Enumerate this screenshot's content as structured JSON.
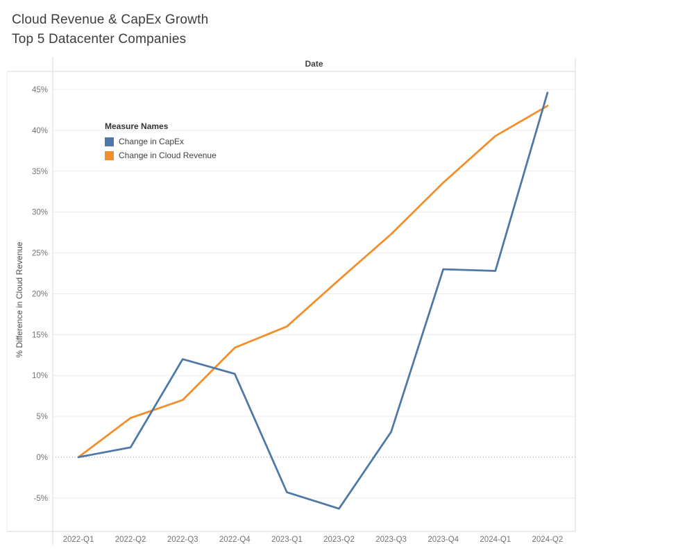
{
  "header": {
    "title": "Cloud Revenue & CapEx Growth",
    "subtitle": "Top 5 Datacenter Companies"
  },
  "chart_data": {
    "type": "line",
    "column_header": "Date",
    "ylabel": "% Difference in Cloud Revenue",
    "categories": [
      "2022-Q1",
      "2022-Q2",
      "2022-Q3",
      "2022-Q4",
      "2023-Q1",
      "2023-Q2",
      "2023-Q3",
      "2023-Q4",
      "2024-Q1",
      "2024-Q2"
    ],
    "series": [
      {
        "name": "Change in CapEx",
        "color": "#4e79a7",
        "values": [
          0,
          1.2,
          12,
          10.2,
          -4.3,
          -6.3,
          3.1,
          23,
          22.8,
          44.6
        ]
      },
      {
        "name": "Change in Cloud Revenue",
        "color": "#f28e2b",
        "values": [
          0,
          4.8,
          7,
          13.4,
          16,
          21.7,
          27.3,
          33.6,
          39.3,
          43
        ]
      }
    ],
    "y_ticks": [
      -5,
      0,
      5,
      10,
      15,
      20,
      25,
      30,
      35,
      40,
      45
    ],
    "y_tick_suffix": "%",
    "ylim": [
      -9.1,
      47.2
    ],
    "grid": "horizontal",
    "zero_line": "dotted",
    "legend": {
      "title": "Measure Names",
      "position": "inside-top-left"
    }
  },
  "colors": {
    "grid_line": "#ececec",
    "zero_line": "#9a9a9a",
    "axis_line": "#d8d8d8",
    "tick_text": "#737373",
    "title_text": "#3c3c3c"
  }
}
